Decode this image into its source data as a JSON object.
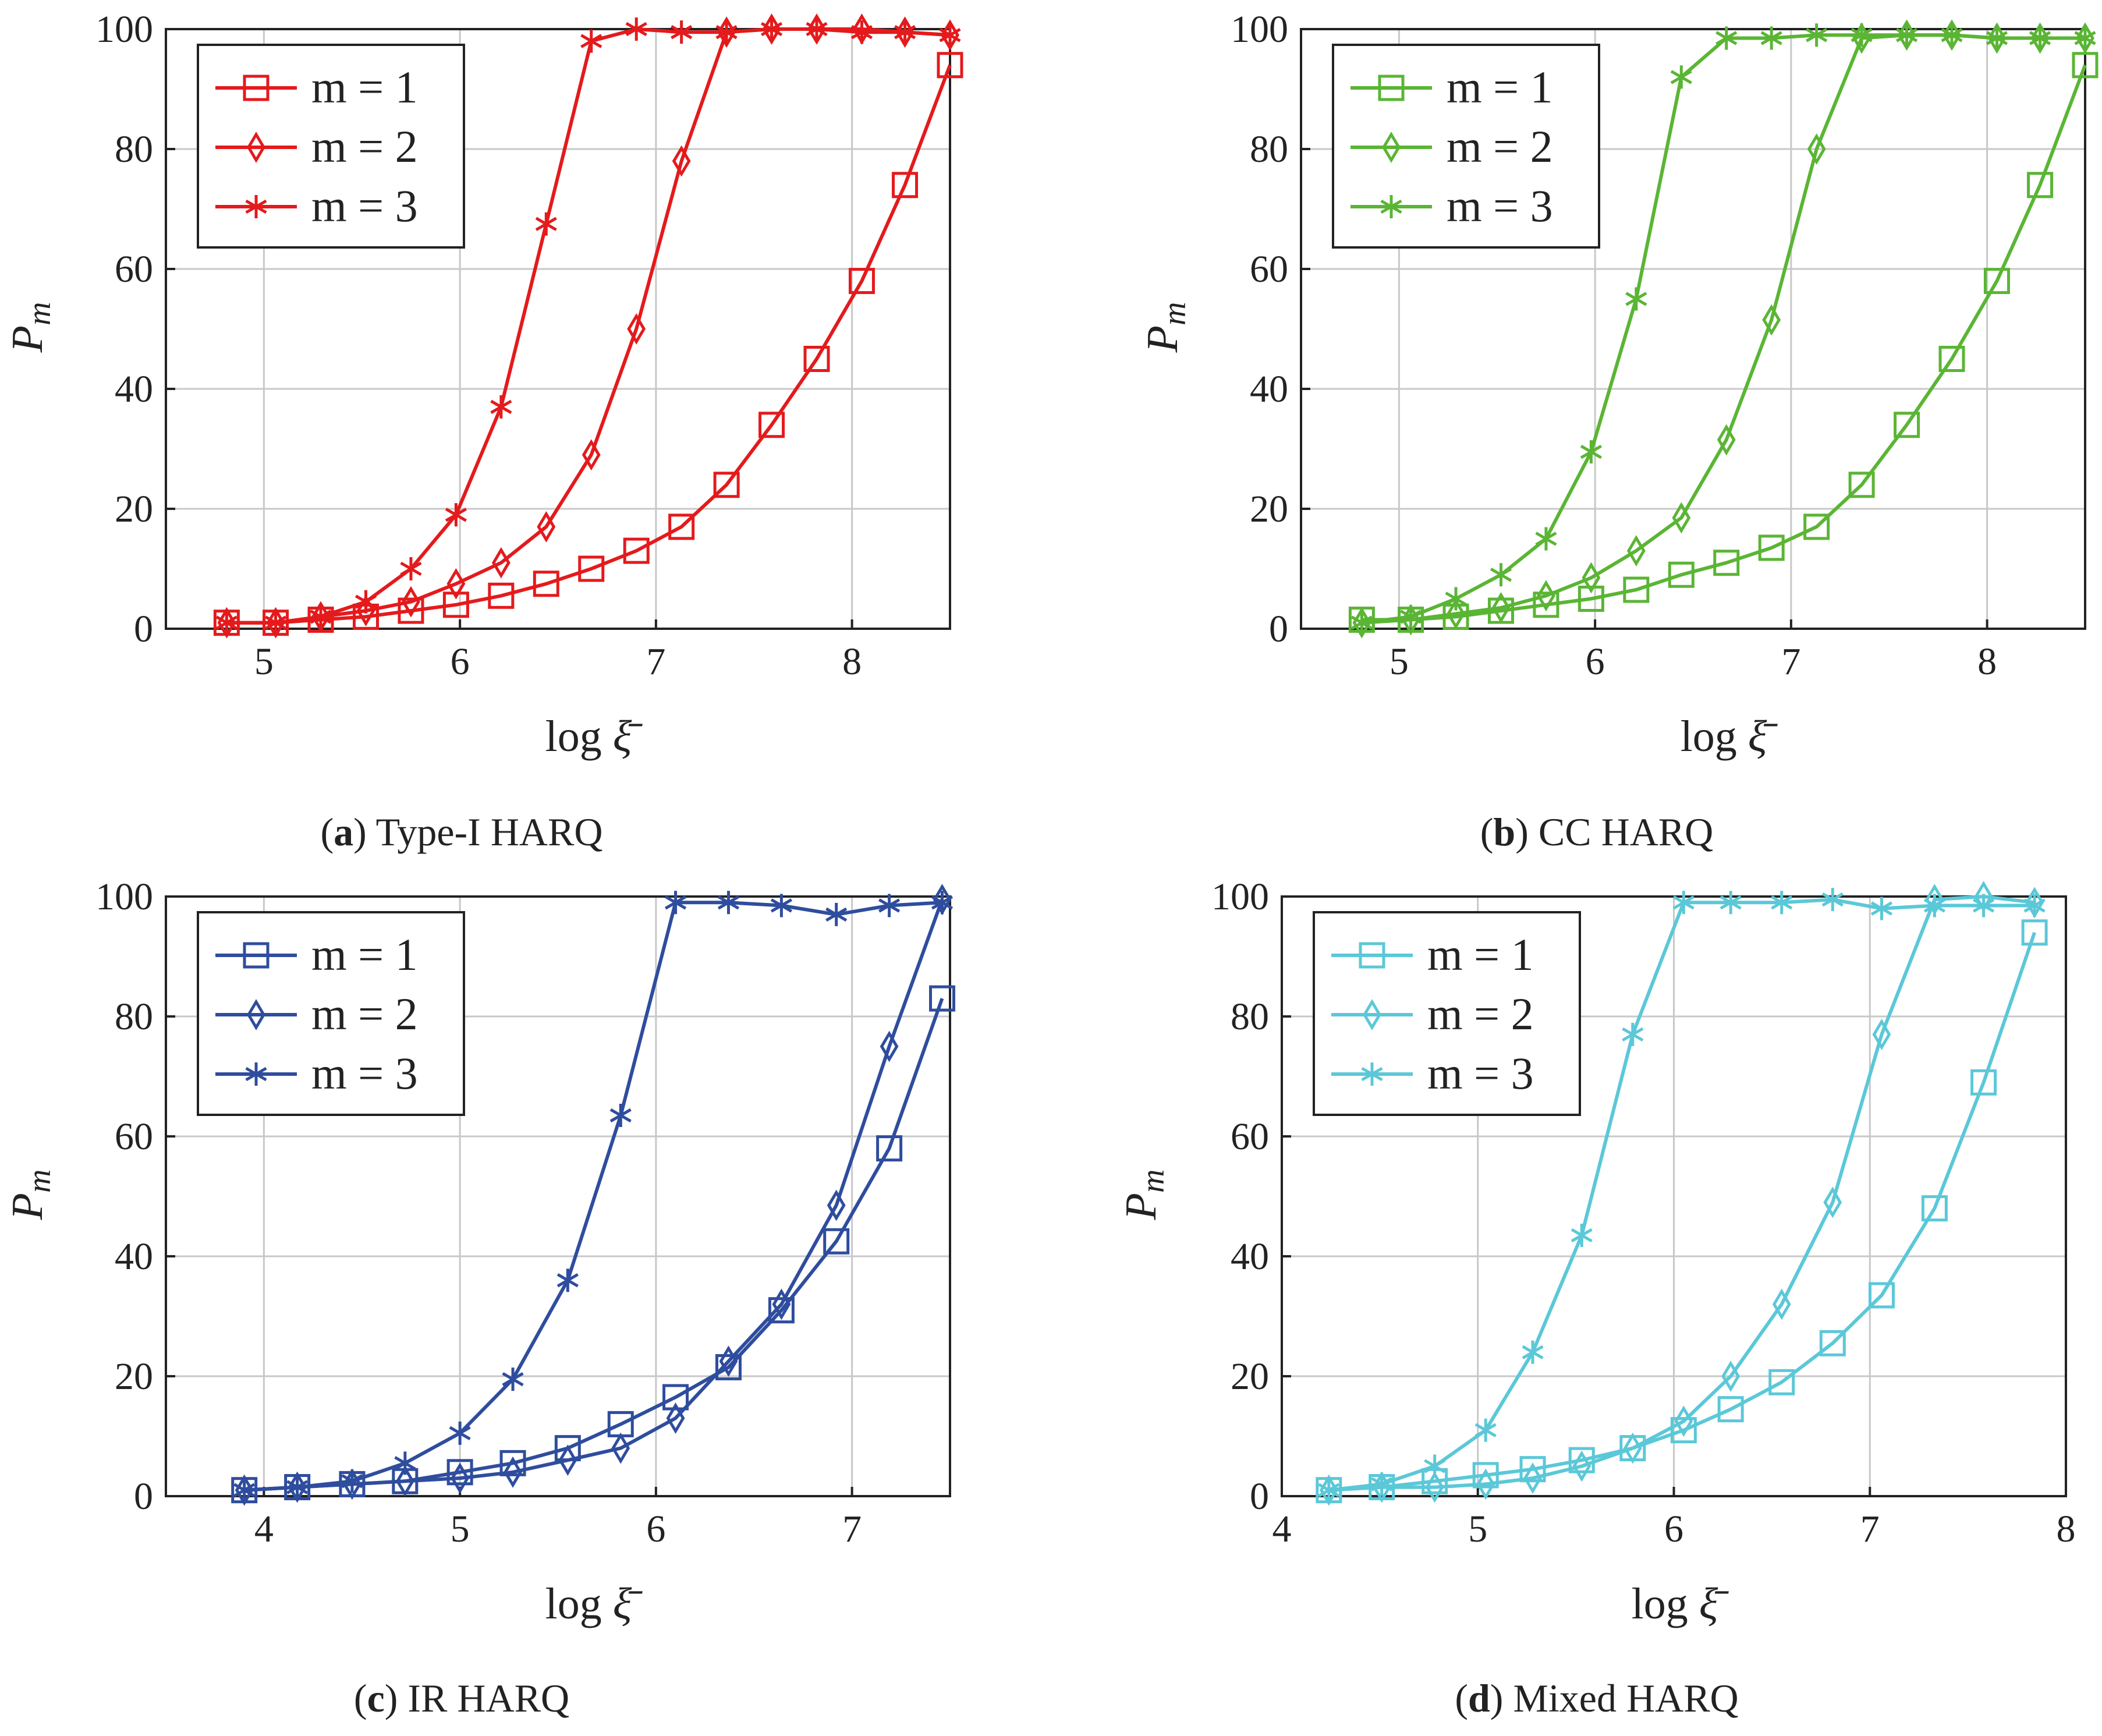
{
  "chart_data": [
    {
      "type": "line",
      "caption_letter": "a",
      "caption_text": " Type-I HARQ",
      "xlabel_main": "log",
      "xlabel_symbol": "ξ̄",
      "ylabel_main": "P",
      "ylabel_sub": "m",
      "xlim": [
        4.5,
        8.5
      ],
      "ylim": [
        0,
        100
      ],
      "xticks": [
        5,
        6,
        7,
        8
      ],
      "yticks": [
        0,
        20,
        40,
        60,
        80,
        100
      ],
      "grid": true,
      "legend_position": "top-left",
      "color": "#e41a1c",
      "series": [
        {
          "name": "m = 1",
          "marker": "square",
          "x": [
            4.81,
            5.06,
            5.29,
            5.52,
            5.75,
            5.98,
            6.21,
            6.44,
            6.67,
            6.9,
            7.13,
            7.36,
            7.59,
            7.82,
            8.05,
            8.27,
            8.5
          ],
          "y": [
            1,
            1,
            1.5,
            2,
            3,
            4,
            5.5,
            7.5,
            10,
            13,
            17,
            24,
            34,
            45,
            58,
            74,
            94
          ]
        },
        {
          "name": "m = 2",
          "marker": "diamond",
          "x": [
            4.81,
            5.06,
            5.29,
            5.52,
            5.75,
            5.98,
            6.21,
            6.44,
            6.67,
            6.9,
            7.13,
            7.36,
            7.59,
            7.82,
            8.05,
            8.27,
            8.5
          ],
          "y": [
            1,
            1,
            2,
            3,
            4.5,
            7.5,
            11,
            17,
            29,
            50,
            78,
            99.5,
            100,
            100,
            100,
            99.5,
            99
          ]
        },
        {
          "name": "m = 3",
          "marker": "star",
          "x": [
            4.81,
            5.06,
            5.29,
            5.52,
            5.75,
            5.98,
            6.21,
            6.44,
            6.67,
            6.9,
            7.13,
            7.36,
            7.59,
            7.82,
            8.05,
            8.27,
            8.5
          ],
          "y": [
            1,
            1,
            2,
            4.5,
            10,
            19,
            37,
            67.5,
            98,
            100,
            99.5,
            99.5,
            100,
            100,
            99.5,
            99.5,
            99
          ]
        }
      ]
    },
    {
      "type": "line",
      "caption_letter": "b",
      "caption_text": " CC HARQ",
      "xlabel_main": "log",
      "xlabel_symbol": "ξ̄",
      "ylabel_main": "P",
      "ylabel_sub": "m",
      "xlim": [
        4.5,
        8.5
      ],
      "ylim": [
        0,
        100
      ],
      "xticks": [
        5,
        6,
        7,
        8
      ],
      "yticks": [
        0,
        20,
        40,
        60,
        80,
        100
      ],
      "grid": true,
      "legend_position": "top-left",
      "color": "#5ab534",
      "series": [
        {
          "name": "m = 1",
          "marker": "square",
          "x": [
            4.81,
            5.06,
            5.29,
            5.52,
            5.75,
            5.98,
            6.21,
            6.44,
            6.67,
            6.9,
            7.13,
            7.36,
            7.59,
            7.82,
            8.05,
            8.27,
            8.5
          ],
          "y": [
            1.5,
            1.5,
            2,
            3,
            4,
            5,
            6.5,
            9,
            11,
            13.5,
            17,
            24,
            34,
            45,
            58,
            74,
            94
          ]
        },
        {
          "name": "m = 2",
          "marker": "diamond",
          "x": [
            4.81,
            5.06,
            5.29,
            5.52,
            5.75,
            5.98,
            6.21,
            6.44,
            6.67,
            6.9,
            7.13,
            7.36,
            7.59,
            7.82,
            8.05,
            8.27,
            8.5
          ],
          "y": [
            1,
            1.5,
            2.5,
            3.5,
            5.5,
            8.5,
            13,
            18.5,
            31.5,
            51.5,
            80,
            98.5,
            99,
            99,
            98.5,
            98.5,
            98.5
          ]
        },
        {
          "name": "m = 3",
          "marker": "star",
          "x": [
            4.81,
            5.06,
            5.29,
            5.52,
            5.75,
            5.98,
            6.21,
            6.44,
            6.67,
            6.9,
            7.13,
            7.36,
            7.59,
            7.82,
            8.05,
            8.27,
            8.5
          ],
          "y": [
            1,
            2,
            5,
            9,
            15,
            29.5,
            55,
            92,
            98.5,
            98.5,
            99,
            99,
            99,
            99,
            98.5,
            98.5,
            98.5
          ]
        }
      ]
    },
    {
      "type": "line",
      "caption_letter": "c",
      "caption_text": " IR HARQ",
      "xlabel_main": "log",
      "xlabel_symbol": "ξ̄",
      "ylabel_main": "P",
      "ylabel_sub": "m",
      "xlim": [
        3.5,
        7.5
      ],
      "ylim": [
        0,
        100
      ],
      "xticks": [
        4,
        5,
        6,
        7
      ],
      "yticks": [
        0,
        20,
        40,
        60,
        80,
        100
      ],
      "grid": true,
      "legend_position": "top-left",
      "color": "#2f4d9e",
      "series": [
        {
          "name": "m = 1",
          "marker": "square",
          "x": [
            3.9,
            4.17,
            4.45,
            4.72,
            5.0,
            5.27,
            5.55,
            5.82,
            6.1,
            6.37,
            6.64,
            6.92,
            7.19,
            7.46
          ],
          "y": [
            1,
            1.5,
            2,
            2.5,
            4,
            5.5,
            8,
            12,
            16.5,
            21.5,
            31,
            42.5,
            58,
            83
          ]
        },
        {
          "name": "m = 2",
          "marker": "diamond",
          "x": [
            3.9,
            4.17,
            4.45,
            4.72,
            5.0,
            5.27,
            5.55,
            5.82,
            6.1,
            6.37,
            6.64,
            6.92,
            7.19,
            7.46
          ],
          "y": [
            1,
            1.5,
            2,
            2.5,
            3,
            4,
            6,
            8,
            13,
            22.5,
            32,
            48.5,
            75,
            99.5
          ]
        },
        {
          "name": "m = 3",
          "marker": "star",
          "x": [
            3.9,
            4.17,
            4.45,
            4.72,
            5.0,
            5.27,
            5.55,
            5.82,
            6.1,
            6.37,
            6.64,
            6.92,
            7.19,
            7.46
          ],
          "y": [
            1,
            1.5,
            2.5,
            5.5,
            10.5,
            19.5,
            36,
            63.5,
            99,
            99,
            98.5,
            97,
            98.5,
            99
          ]
        }
      ]
    },
    {
      "type": "line",
      "caption_letter": "d",
      "caption_text": " Mixed HARQ",
      "xlabel_main": "log",
      "xlabel_symbol": "ξ̄",
      "ylabel_main": "P",
      "ylabel_sub": "m",
      "xlim": [
        4,
        8
      ],
      "ylim": [
        0,
        100
      ],
      "xticks": [
        4,
        5,
        6,
        7,
        8
      ],
      "yticks": [
        0,
        20,
        40,
        60,
        80,
        100
      ],
      "grid": true,
      "legend_position": "top-left",
      "color": "#5bc8d8",
      "series": [
        {
          "name": "m = 1",
          "marker": "square",
          "x": [
            4.24,
            4.51,
            4.78,
            5.04,
            5.28,
            5.53,
            5.79,
            6.05,
            6.29,
            6.55,
            6.81,
            7.06,
            7.33,
            7.58,
            7.84
          ],
          "y": [
            1,
            1.5,
            2.5,
            3.5,
            4.5,
            6,
            8,
            11,
            14.5,
            19,
            25.5,
            33.5,
            48,
            69,
            94
          ]
        },
        {
          "name": "m = 2",
          "marker": "diamond",
          "x": [
            4.24,
            4.51,
            4.78,
            5.04,
            5.28,
            5.53,
            5.79,
            6.05,
            6.29,
            6.55,
            6.81,
            7.06,
            7.33,
            7.58,
            7.84
          ],
          "y": [
            1,
            1.5,
            1.5,
            2,
            3,
            5,
            8,
            12.5,
            20,
            32,
            49,
            77,
            99.5,
            100,
            99
          ]
        },
        {
          "name": "m = 3",
          "marker": "star",
          "x": [
            4.24,
            4.51,
            4.78,
            5.04,
            5.28,
            5.53,
            5.79,
            6.05,
            6.29,
            6.55,
            6.81,
            7.06,
            7.33,
            7.58,
            7.84
          ],
          "y": [
            1,
            2,
            5,
            11,
            24,
            43.5,
            77,
            99,
            99,
            99,
            99.5,
            98,
            98.5,
            98.5,
            98.5
          ]
        }
      ]
    }
  ]
}
